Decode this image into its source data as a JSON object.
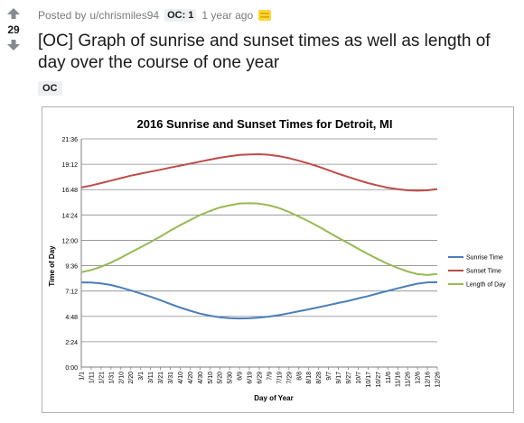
{
  "post": {
    "score": "29",
    "meta_prefix": "Posted by",
    "author": "u/chrismiles94",
    "flair": "OC: 1",
    "time_ago": "1 year ago",
    "title": "[OC] Graph of sunrise and sunset times as well as length of day over the course of one year",
    "tag": "OC"
  },
  "icons": {
    "upvote": "arrow-up-icon",
    "downvote": "arrow-down-icon",
    "award": "award-icon"
  },
  "colors": {
    "sunrise": "#4a7ebb",
    "sunset": "#be4b48",
    "length": "#98b954",
    "award": "#ffd635"
  },
  "chart_data": {
    "type": "line",
    "title": "2016 Sunrise and Sunset Times for Detroit, MI",
    "xlabel": "Day of Year",
    "ylabel": "Time of Day",
    "ylim": [
      0,
      1296
    ],
    "y_ticks": [
      "0:00",
      "2:24",
      "4:48",
      "7:12",
      "9:36",
      "12:00",
      "14:24",
      "16:48",
      "19:12",
      "21:36"
    ],
    "y_tick_minutes": [
      0,
      144,
      288,
      432,
      576,
      720,
      864,
      1008,
      1152,
      1296
    ],
    "x_ticks": [
      "1/1",
      "1/11",
      "1/21",
      "1/31",
      "2/10",
      "2/20",
      "3/1",
      "3/11",
      "3/21",
      "3/31",
      "4/10",
      "4/20",
      "4/30",
      "5/10",
      "5/20",
      "5/30",
      "6/9",
      "6/19",
      "6/29",
      "7/9",
      "7/19",
      "7/29",
      "8/8",
      "8/18",
      "8/28",
      "9/7",
      "9/17",
      "9/27",
      "10/7",
      "10/17",
      "10/27",
      "11/6",
      "11/16",
      "11/26",
      "12/6",
      "12/16",
      "12/26"
    ],
    "grid": true,
    "legend_position": "right",
    "series": [
      {
        "name": "Sunrise Time",
        "color": "#4a7ebb",
        "values": [
          481,
          480,
          475,
          466,
          452,
          436,
          418,
          400,
          380,
          358,
          338,
          320,
          304,
          292,
          283,
          278,
          276,
          277,
          281,
          287,
          295,
          306,
          317,
          328,
          340,
          352,
          364,
          376,
          390,
          403,
          418,
          433,
          447,
          461,
          474,
          481,
          482
        ]
      },
      {
        "name": "Sunset Time",
        "color": "#be4b48",
        "values": [
          1020,
          1031,
          1045,
          1059,
          1073,
          1087,
          1099,
          1110,
          1121,
          1133,
          1144,
          1155,
          1167,
          1178,
          1189,
          1197,
          1205,
          1208,
          1209,
          1206,
          1198,
          1187,
          1172,
          1156,
          1138,
          1118,
          1098,
          1080,
          1062,
          1045,
          1031,
          1019,
          1010,
          1004,
          1002,
          1004,
          1011
        ]
      },
      {
        "name": "Length of Day",
        "color": "#98b954",
        "values": [
          539,
          551,
          570,
          593,
          621,
          651,
          681,
          710,
          741,
          775,
          806,
          835,
          863,
          886,
          906,
          919,
          929,
          931,
          928,
          919,
          903,
          881,
          855,
          828,
          798,
          766,
          734,
          704,
          672,
          642,
          613,
          586,
          563,
          543,
          528,
          523,
          529
        ]
      }
    ]
  }
}
